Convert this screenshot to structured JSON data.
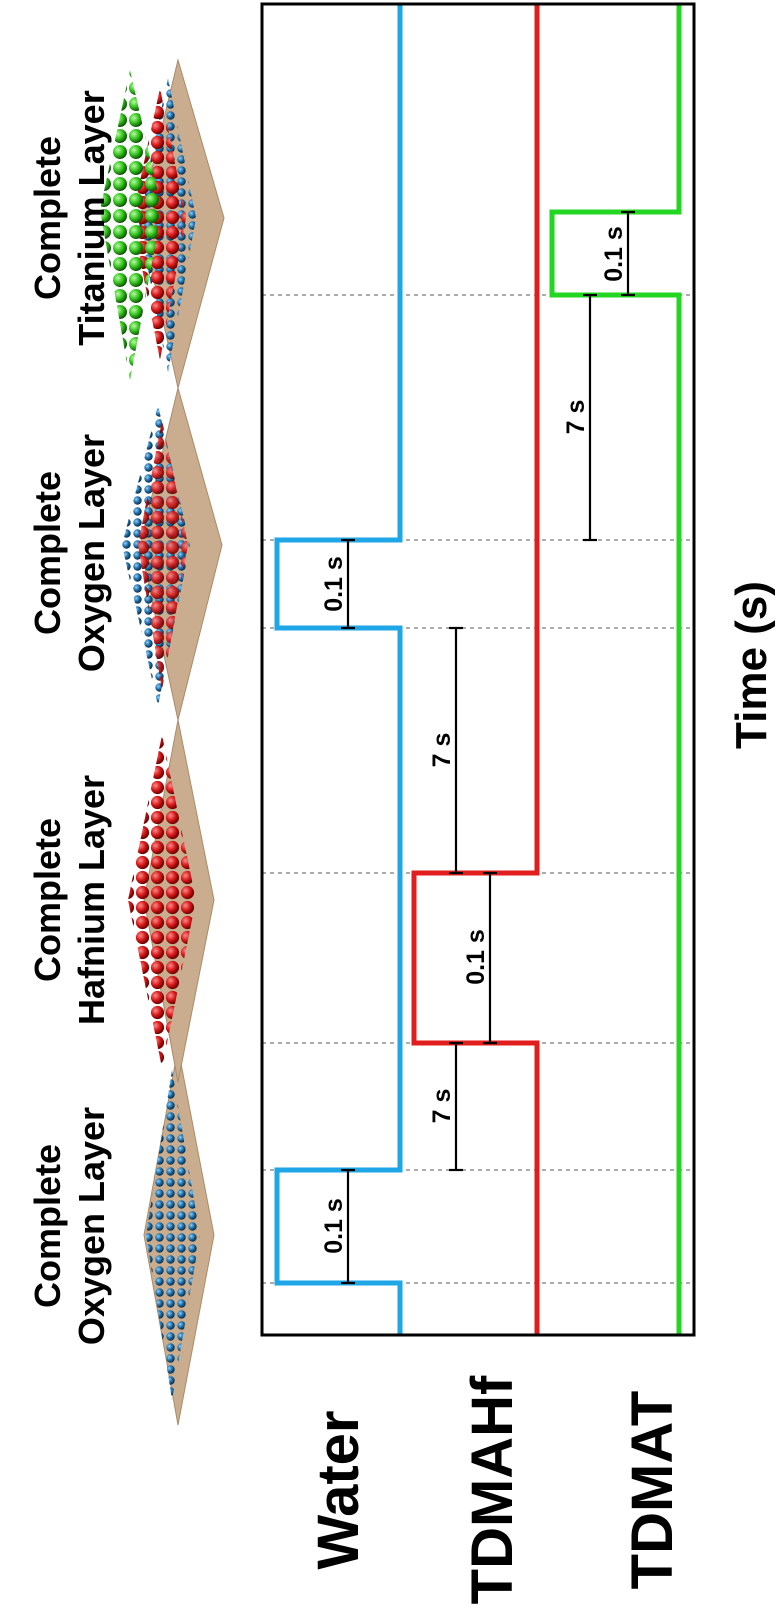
{
  "signals": [
    {
      "label": "Water",
      "color": "#1ea6e6"
    },
    {
      "label": "TDMAHf",
      "color": "#e21d1d"
    },
    {
      "label": "TDMAT",
      "color": "#22d622"
    }
  ],
  "axis_label": "Time (s)",
  "layers": [
    {
      "line1": "Complete",
      "line2": "Oxygen Layer"
    },
    {
      "line1": "Complete",
      "line2": "Hafnium Layer"
    },
    {
      "line1": "Complete",
      "line2": "Oxygen Layer"
    },
    {
      "line1": "Complete",
      "line2": "Titanium Layer"
    }
  ],
  "annotations": {
    "pulse_water_1": "0.1 s",
    "purge_1": "7 s",
    "pulse_hf": "0.1 s",
    "purge_2": "7 s",
    "pulse_water_2": "0.1 s",
    "purge_3": "7 s",
    "pulse_ti": "0.1 s"
  },
  "colors": {
    "water": "#1ea6e6",
    "hafnium": "#e21d1d",
    "titanium": "#22d622",
    "oxygen_atom": "#1a5f8f",
    "substrate": "#c9ad8e",
    "frame": "#000000"
  }
}
